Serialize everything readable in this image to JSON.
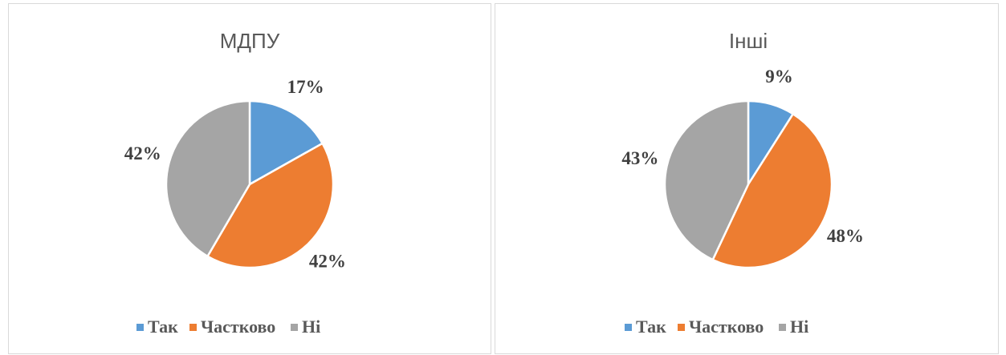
{
  "chart_data": [
    {
      "type": "pie",
      "title": "МДПУ",
      "categories": [
        "Так",
        "Частково",
        "Ні"
      ],
      "values": [
        17,
        42,
        42
      ],
      "value_labels": [
        "17%",
        "42%",
        "42%"
      ],
      "colors": [
        "#5b9bd5",
        "#ed7d31",
        "#a5a5a5"
      ],
      "legend": "bottom"
    },
    {
      "type": "pie",
      "title": "Інші",
      "categories": [
        "Так",
        "Частково",
        "Ні"
      ],
      "values": [
        9,
        48,
        43
      ],
      "value_labels": [
        "9%",
        "48%",
        "43%"
      ],
      "colors": [
        "#5b9bd5",
        "#ed7d31",
        "#a5a5a5"
      ],
      "legend": "bottom"
    }
  ]
}
